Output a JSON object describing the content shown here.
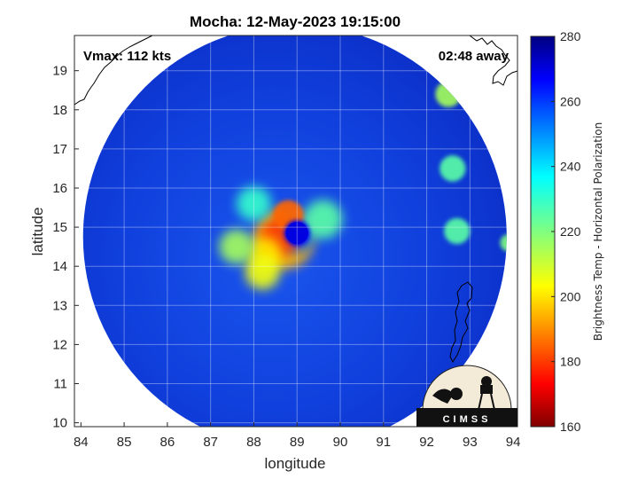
{
  "chart_data": {
    "type": "heatmap",
    "title": "Mocha: 12-May-2023 19:15:00",
    "xlabel": "longitude",
    "ylabel": "latitude",
    "xlim": [
      83.85,
      94.1
    ],
    "ylim": [
      9.9,
      19.9
    ],
    "x_ticks": [
      84,
      85,
      86,
      87,
      88,
      89,
      90,
      91,
      92,
      93,
      94
    ],
    "y_ticks": [
      10,
      11,
      12,
      13,
      14,
      15,
      16,
      17,
      18,
      19
    ],
    "grid": true,
    "colorbar": {
      "label": "Brightness Temp - Horizontal Polarization",
      "range": [
        160,
        280
      ],
      "ticks": [
        160,
        180,
        200,
        220,
        240,
        260,
        280
      ],
      "colormap": "jet"
    },
    "annotations": {
      "vmax": "Vmax: 112 kts",
      "time_away": "02:48 away"
    },
    "storm_center": {
      "lon": 89.0,
      "lat": 14.85
    },
    "swath": {
      "center_lon": 88.95,
      "center_lat": 14.75,
      "radius_deg": 4.9
    },
    "features": [
      {
        "lon": 89.0,
        "lat": 14.85,
        "r": 0.45,
        "value": 255
      },
      {
        "lon": 89.0,
        "lat": 14.85,
        "r": 0.3,
        "value": 268
      },
      {
        "lon": 88.7,
        "lat": 14.7,
        "r": 0.7,
        "value": 195
      },
      {
        "lon": 88.6,
        "lat": 14.75,
        "r": 0.45,
        "value": 180
      },
      {
        "lon": 88.8,
        "lat": 15.3,
        "r": 0.35,
        "value": 185
      },
      {
        "lon": 88.25,
        "lat": 14.3,
        "r": 0.4,
        "value": 200
      },
      {
        "lon": 88.2,
        "lat": 13.85,
        "r": 0.4,
        "value": 205
      },
      {
        "lon": 87.6,
        "lat": 14.5,
        "r": 0.4,
        "value": 215
      },
      {
        "lon": 89.6,
        "lat": 15.2,
        "r": 0.45,
        "value": 225
      },
      {
        "lon": 88.0,
        "lat": 15.6,
        "r": 0.4,
        "value": 230
      },
      {
        "lon": 92.5,
        "lat": 18.4,
        "r": 0.3,
        "value": 215
      },
      {
        "lon": 92.6,
        "lat": 16.5,
        "r": 0.3,
        "value": 225
      },
      {
        "lon": 92.7,
        "lat": 14.9,
        "r": 0.3,
        "value": 225
      },
      {
        "lon": 93.9,
        "lat": 14.6,
        "r": 0.2,
        "value": 220
      }
    ],
    "logo": "CIMSS"
  }
}
